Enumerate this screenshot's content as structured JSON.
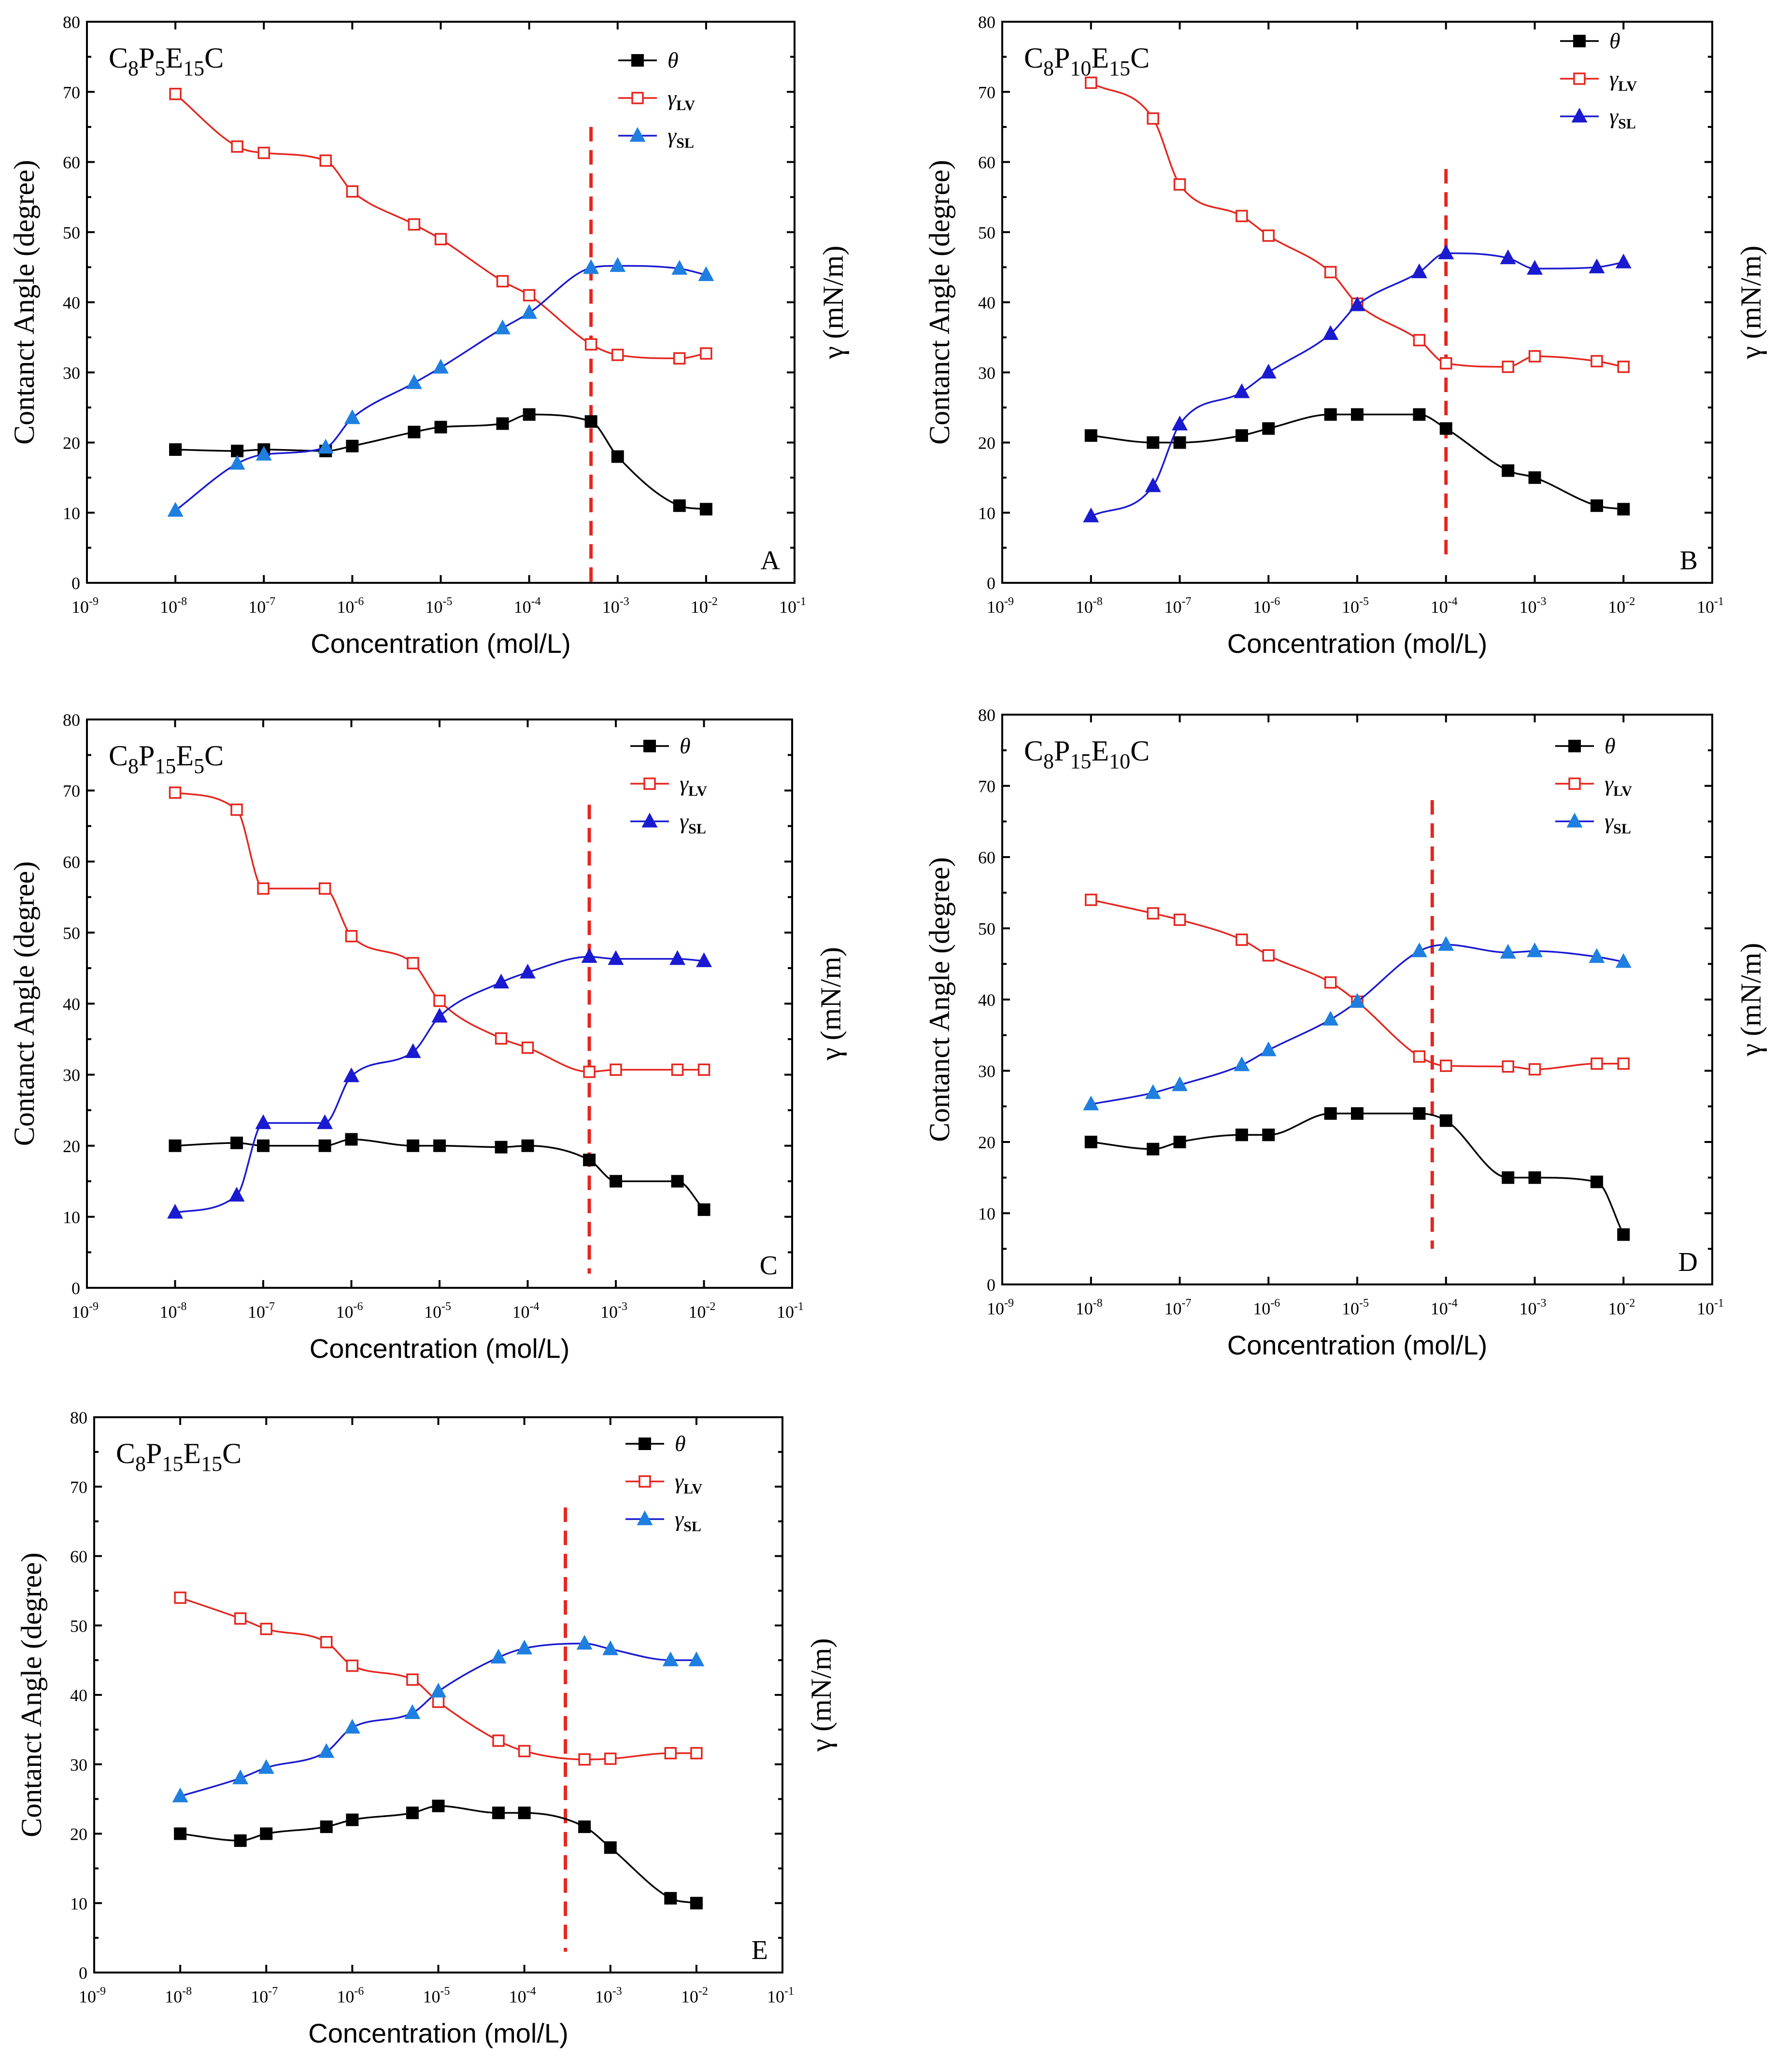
{
  "figure": {
    "legend": {
      "theta": "θ",
      "lv_symbol": "γ",
      "lv_sub": "LV",
      "sl_symbol": "γ",
      "sl_sub": "SL"
    },
    "colors": {
      "theta": "#000000",
      "lv": "#e5261f",
      "sl_line": "#1a1ad0",
      "sl_marker_dark": "#1a1ad0",
      "sl_marker_light": "#1e7fe0",
      "cmc": "#e5261f"
    }
  },
  "chart_data": [
    {
      "type": "line",
      "panel_label": "A",
      "compound": {
        "base": "C",
        "s1": "8",
        "p": "P",
        "s2": "5",
        "e": "E",
        "s3": "15",
        "end": "C"
      },
      "xlabel": "Concentration (mol/L)",
      "ylabel_left": "Contanct Angle (degree)",
      "ylabel_right": "γ (mN/m)",
      "x_scale": "log",
      "xlim_exp": [
        -9,
        -1
      ],
      "ylim": [
        0,
        80
      ],
      "y_ticks": [
        "0",
        "10",
        "20",
        "30",
        "40",
        "50",
        "60",
        "70",
        "80"
      ],
      "x_tick_base": "10",
      "x_tick_exponents": [
        "-9",
        "-8",
        "-7",
        "-6",
        "-5",
        "-4",
        "-3",
        "-2",
        "-1"
      ],
      "cmc_x": 0.0005,
      "cmc_y_range": [
        0,
        65
      ],
      "sl_marker_style": "light",
      "series": [
        {
          "name": "θ",
          "key": "theta",
          "x": [
            1e-08,
            5e-08,
            1e-07,
            5e-07,
            1e-06,
            5e-06,
            1e-05,
            5e-05,
            0.0001,
            0.0005,
            0.001,
            0.005,
            0.01
          ],
          "values": [
            19,
            18.8,
            19,
            18.8,
            19.5,
            21.5,
            22.2,
            22.7,
            24,
            23,
            18,
            11,
            10.5
          ]
        },
        {
          "name": "γLV",
          "key": "lv",
          "x": [
            1e-08,
            5e-08,
            1e-07,
            5e-07,
            1e-06,
            5e-06,
            1e-05,
            5e-05,
            0.0001,
            0.0005,
            0.001,
            0.005,
            0.01
          ],
          "values": [
            69.7,
            62.2,
            61.3,
            60.2,
            55.8,
            51.1,
            49,
            43,
            41,
            34,
            32.5,
            32,
            32.7
          ]
        },
        {
          "name": "γSL",
          "key": "sl",
          "x": [
            1e-08,
            5e-08,
            1e-07,
            5e-07,
            1e-06,
            5e-06,
            1e-05,
            5e-05,
            0.0001,
            0.0005,
            0.001,
            0.005,
            0.01
          ],
          "values": [
            10.3,
            17,
            18.3,
            19.3,
            23.5,
            28.5,
            30.7,
            36.3,
            38.5,
            44.9,
            45.2,
            44.8,
            43.9
          ]
        }
      ]
    },
    {
      "type": "line",
      "panel_label": "B",
      "compound": {
        "base": "C",
        "s1": "8",
        "p": "P",
        "s2": "10",
        "e": "E",
        "s3": "15",
        "end": "C"
      },
      "xlabel": "Concentration (mol/L)",
      "ylabel_left": "Contanct Angle (degree)",
      "ylabel_right": "γ (mN/m)",
      "x_scale": "log",
      "xlim_exp": [
        -9,
        -1
      ],
      "ylim": [
        0,
        80
      ],
      "y_ticks": [
        "0",
        "10",
        "20",
        "30",
        "40",
        "50",
        "60",
        "70",
        "80"
      ],
      "x_tick_base": "10",
      "x_tick_exponents": [
        "-9",
        "-8",
        "-7",
        "-6",
        "-5",
        "-4",
        "-3",
        "-2",
        "-1"
      ],
      "cmc_x": 0.0001,
      "cmc_y_range": [
        3,
        59
      ],
      "sl_marker_style": "dark",
      "series": [
        {
          "name": "θ",
          "key": "theta",
          "x": [
            1e-08,
            5e-08,
            1e-07,
            5e-07,
            1e-06,
            5e-06,
            1e-05,
            5e-05,
            0.0001,
            0.0005,
            0.001,
            0.005,
            0.01
          ],
          "values": [
            21,
            20,
            20,
            21,
            22,
            24,
            24,
            24,
            22,
            16,
            15,
            11,
            10.5
          ]
        },
        {
          "name": "γLV",
          "key": "lv",
          "x": [
            1e-08,
            5e-08,
            1e-07,
            5e-07,
            1e-06,
            5e-06,
            1e-05,
            5e-05,
            0.0001,
            0.0005,
            0.001,
            0.005,
            0.01
          ],
          "values": [
            71.3,
            66.2,
            56.8,
            52.3,
            49.5,
            44.3,
            39.8,
            34.6,
            31.3,
            30.8,
            32.3,
            31.6,
            30.8
          ]
        },
        {
          "name": "γSL",
          "key": "sl",
          "x": [
            1e-08,
            5e-08,
            1e-07,
            5e-07,
            1e-06,
            5e-06,
            1e-05,
            5e-05,
            0.0001,
            0.0005,
            0.001,
            0.005,
            0.01
          ],
          "values": [
            9.5,
            13.8,
            22.6,
            27.2,
            30,
            35.5,
            39.6,
            44.3,
            47,
            46.3,
            44.8,
            45,
            45.7
          ]
        }
      ]
    },
    {
      "type": "line",
      "panel_label": "C",
      "compound": {
        "base": "C",
        "s1": "8",
        "p": "P",
        "s2": "15",
        "e": "E",
        "s3": "5",
        "end": "C"
      },
      "xlabel": "Concentration (mol/L)",
      "ylabel_left": "Contanct Angle (degree)",
      "ylabel_right": "γ (mN/m)",
      "x_scale": "log",
      "xlim_exp": [
        -9,
        -1
      ],
      "ylim": [
        0,
        80
      ],
      "y_ticks": [
        "0",
        "10",
        "20",
        "30",
        "40",
        "50",
        "60",
        "70",
        "80"
      ],
      "x_tick_base": "10",
      "x_tick_exponents": [
        "-9",
        "-8",
        "-7",
        "-6",
        "-5",
        "-4",
        "-3",
        "-2",
        "-1"
      ],
      "cmc_x": 0.0005,
      "cmc_y_range": [
        2,
        68
      ],
      "sl_marker_style": "dark",
      "series": [
        {
          "name": "θ",
          "key": "theta",
          "x": [
            1e-08,
            5e-08,
            1e-07,
            5e-07,
            1e-06,
            5e-06,
            1e-05,
            5e-05,
            0.0001,
            0.0005,
            0.001,
            0.005,
            0.01
          ],
          "values": [
            20,
            20.4,
            20,
            20,
            20.9,
            20,
            20,
            19.8,
            20,
            18,
            15,
            15,
            11
          ]
        },
        {
          "name": "γLV",
          "key": "lv",
          "x": [
            1e-08,
            5e-08,
            1e-07,
            5e-07,
            1e-06,
            5e-06,
            1e-05,
            5e-05,
            0.0001,
            0.0005,
            0.001,
            0.005,
            0.01
          ],
          "values": [
            69.7,
            67.3,
            56.2,
            56.2,
            49.5,
            45.7,
            40.4,
            35.1,
            33.8,
            30.4,
            30.7,
            30.7,
            30.7
          ]
        },
        {
          "name": "γSL",
          "key": "sl",
          "x": [
            1e-08,
            5e-08,
            1e-07,
            5e-07,
            1e-06,
            5e-06,
            1e-05,
            5e-05,
            0.0001,
            0.0005,
            0.001,
            0.005,
            0.01
          ],
          "values": [
            10.6,
            13,
            23.2,
            23.2,
            29.8,
            33.2,
            38.2,
            43,
            44.4,
            46.6,
            46.3,
            46.3,
            46
          ]
        }
      ]
    },
    {
      "type": "line",
      "panel_label": "D",
      "compound": {
        "base": "C",
        "s1": "8",
        "p": "P",
        "s2": "15",
        "e": "E",
        "s3": "10",
        "end": "C"
      },
      "xlabel": "Concentration (mol/L)",
      "ylabel_left": "Contanct Angle (degree)",
      "ylabel_right": "γ (mN/m)",
      "x_scale": "log",
      "xlim_exp": [
        -9,
        -1
      ],
      "ylim": [
        0,
        80
      ],
      "y_ticks": [
        "0",
        "10",
        "20",
        "30",
        "40",
        "50",
        "60",
        "70",
        "80"
      ],
      "x_tick_base": "10",
      "x_tick_exponents": [
        "-9",
        "-8",
        "-7",
        "-6",
        "-5",
        "-4",
        "-3",
        "-2",
        "-1"
      ],
      "cmc_x": 7e-05,
      "cmc_y_range": [
        5,
        68
      ],
      "sl_marker_style": "light",
      "series": [
        {
          "name": "θ",
          "key": "theta",
          "x": [
            1e-08,
            5e-08,
            1e-07,
            5e-07,
            1e-06,
            5e-06,
            1e-05,
            5e-05,
            0.0001,
            0.0005,
            0.001,
            0.005,
            0.01
          ],
          "values": [
            20,
            19,
            20,
            21,
            21,
            24,
            24,
            24,
            23,
            15,
            15,
            14.4,
            7
          ]
        },
        {
          "name": "γLV",
          "key": "lv",
          "x": [
            1e-08,
            5e-08,
            1e-07,
            5e-07,
            1e-06,
            5e-06,
            1e-05,
            5e-05,
            0.0001,
            0.0005,
            0.001,
            0.005,
            0.01
          ],
          "values": [
            54,
            52.1,
            51.2,
            48.4,
            46.2,
            42.4,
            39.7,
            32,
            30.7,
            30.6,
            30.2,
            31,
            31
          ]
        },
        {
          "name": "γSL",
          "key": "sl",
          "x": [
            1e-08,
            5e-08,
            1e-07,
            5e-07,
            1e-06,
            5e-06,
            1e-05,
            5e-05,
            0.0001,
            0.0005,
            0.001,
            0.005,
            0.01
          ],
          "values": [
            25.3,
            26.9,
            28,
            30.8,
            32.9,
            37.2,
            39.7,
            46.8,
            47.7,
            46.6,
            46.8,
            46,
            45.3
          ]
        }
      ]
    },
    {
      "type": "line",
      "panel_label": "E",
      "compound": {
        "base": "C",
        "s1": "8",
        "p": "P",
        "s2": "15",
        "e": "E",
        "s3": "15",
        "end": "C"
      },
      "xlabel": "Concentration (mol/L)",
      "ylabel_left": "Contanct Angle (degree)",
      "ylabel_right": "γ (mN/m)",
      "x_scale": "log",
      "xlim_exp": [
        -9,
        -1
      ],
      "ylim": [
        0,
        80
      ],
      "y_ticks": [
        "0",
        "10",
        "20",
        "30",
        "40",
        "50",
        "60",
        "70",
        "80"
      ],
      "x_tick_base": "10",
      "x_tick_exponents": [
        "-9",
        "-8",
        "-7",
        "-6",
        "-5",
        "-4",
        "-3",
        "-2",
        "-1"
      ],
      "cmc_x": 0.0003,
      "cmc_y_range": [
        3,
        67
      ],
      "sl_marker_style": "light",
      "series": [
        {
          "name": "θ",
          "key": "theta",
          "x": [
            1e-08,
            5e-08,
            1e-07,
            5e-07,
            1e-06,
            5e-06,
            1e-05,
            5e-05,
            0.0001,
            0.0005,
            0.001,
            0.005,
            0.01
          ],
          "values": [
            20,
            19,
            20,
            21,
            22,
            23,
            24,
            23,
            23,
            21,
            18,
            10.7,
            10
          ]
        },
        {
          "name": "γLV",
          "key": "lv",
          "x": [
            1e-08,
            5e-08,
            1e-07,
            5e-07,
            1e-06,
            5e-06,
            1e-05,
            5e-05,
            0.0001,
            0.0005,
            0.001,
            0.005,
            0.01
          ],
          "values": [
            54,
            51,
            49.5,
            47.6,
            44.2,
            42.2,
            39,
            33.4,
            31.9,
            30.7,
            30.8,
            31.6,
            31.6
          ]
        },
        {
          "name": "γSL",
          "key": "sl",
          "x": [
            1e-08,
            5e-08,
            1e-07,
            5e-07,
            1e-06,
            5e-06,
            1e-05,
            5e-05,
            0.0001,
            0.0005,
            0.001,
            0.005,
            0.01
          ],
          "values": [
            25.4,
            28,
            29.5,
            31.8,
            35.3,
            37.4,
            40.5,
            45.4,
            46.7,
            47.4,
            46.6,
            45,
            45
          ]
        }
      ]
    }
  ]
}
